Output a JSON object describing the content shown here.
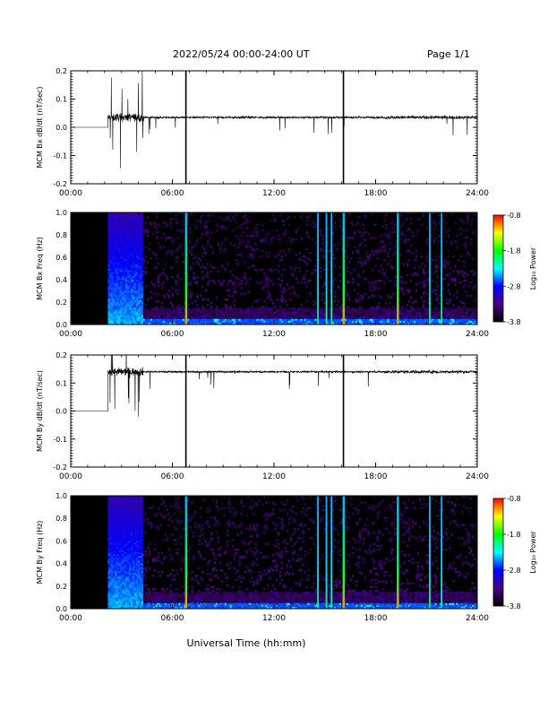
{
  "header": {
    "date_range": "2022/05/24  00:00-24:00 UT",
    "page": "Page 1/1"
  },
  "x_axis": {
    "label": "Universal Time (hh:mm)",
    "ticks": [
      "00:00",
      "06:00",
      "12:00",
      "18:00",
      "24:00"
    ],
    "range_hours": [
      0,
      24
    ]
  },
  "colorbar": {
    "label": "Log₁₀ Power",
    "ticks": [
      "-0.8",
      "-1.8",
      "-2.8",
      "-3.8"
    ],
    "range": [
      -3.8,
      -0.8
    ],
    "colors": [
      "#000000",
      "#4b0082",
      "#0000ff",
      "#00ffff",
      "#00ff00",
      "#ffff00",
      "#ff0000"
    ]
  },
  "chart_data": [
    {
      "type": "line",
      "id": "bx-dbdt",
      "ylabel": "MCM Bx dB/dt (nT/sec)",
      "ylim": [
        -0.2,
        0.2
      ],
      "yticks": [
        "0.2",
        "0.1",
        "0.0",
        "-0.1",
        "-0.2"
      ],
      "baseline_before_data": 0.0,
      "data_start_hour": 2.2,
      "mean_level": 0.035,
      "noisy_interval_hours": [
        2.2,
        4.3
      ],
      "spikes_hours": [
        6.8,
        16.1
      ],
      "color": "#000000"
    },
    {
      "type": "heatmap",
      "id": "bx-spectrogram",
      "ylabel": "MCM Bx Freq (Hz)",
      "ylim": [
        0.0,
        1.0
      ],
      "yticks": [
        "1.0",
        "0.8",
        "0.6",
        "0.4",
        "0.2",
        "0.0"
      ],
      "zlim": [
        -3.8,
        -0.8
      ],
      "data_start_hour": 2.2,
      "broadband_interval_hours": [
        2.2,
        4.3
      ],
      "vertical_stripes_hours": [
        6.8,
        14.6,
        15.1,
        15.4,
        16.1,
        19.3,
        21.2,
        21.9
      ]
    },
    {
      "type": "line",
      "id": "by-dbdt",
      "ylabel": "MCM By dB/dt (nT/sec)",
      "ylim": [
        -0.2,
        0.2
      ],
      "yticks": [
        "0.2",
        "0.1",
        "0.0",
        "-0.1",
        "-0.2"
      ],
      "baseline_before_data": 0.0,
      "data_start_hour": 2.2,
      "mean_level": 0.14,
      "noisy_interval_hours": [
        2.2,
        4.3
      ],
      "spikes_hours": [
        6.8,
        16.1
      ],
      "color": "#000000"
    },
    {
      "type": "heatmap",
      "id": "by-spectrogram",
      "ylabel": "MCM By Freq (Hz)",
      "ylim": [
        0.0,
        1.0
      ],
      "yticks": [
        "1.0",
        "0.8",
        "0.6",
        "0.4",
        "0.2",
        "0.0"
      ],
      "zlim": [
        -3.8,
        -0.8
      ],
      "data_start_hour": 2.2,
      "broadband_interval_hours": [
        2.2,
        4.3
      ],
      "vertical_stripes_hours": [
        6.8,
        14.6,
        15.1,
        15.4,
        16.1,
        19.3,
        21.2,
        21.9
      ]
    }
  ]
}
